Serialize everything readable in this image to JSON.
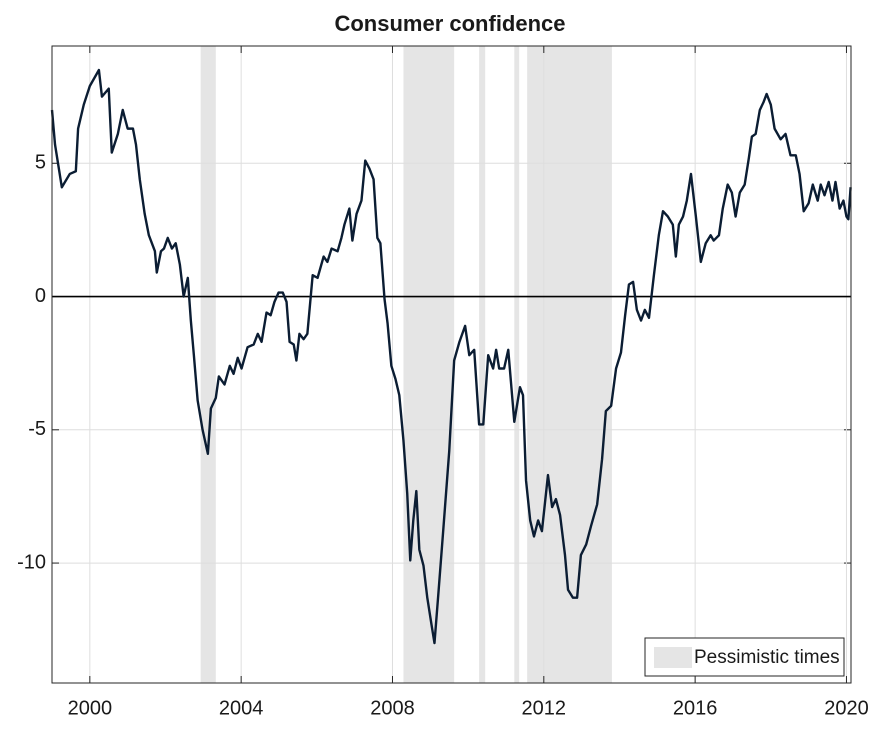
{
  "chart_data": {
    "type": "line",
    "title": "Consumer confidence",
    "x": [
      1999.0,
      1999.08,
      1999.26,
      1999.47,
      1999.63,
      1999.69,
      1999.84,
      2000.0,
      2000.24,
      2000.32,
      2000.5,
      2000.58,
      2000.74,
      2000.87,
      2001.0,
      2001.14,
      2001.22,
      2001.32,
      2001.45,
      2001.56,
      2001.72,
      2001.77,
      2001.88,
      2001.96,
      2002.06,
      2002.17,
      2002.27,
      2002.38,
      2002.48,
      2002.59,
      2002.67,
      2002.75,
      2002.85,
      2002.98,
      2003.12,
      2003.2,
      2003.33,
      2003.41,
      2003.56,
      2003.7,
      2003.8,
      2003.91,
      2004.01,
      2004.17,
      2004.33,
      2004.44,
      2004.54,
      2004.67,
      2004.78,
      2004.88,
      2004.99,
      2005.1,
      2005.2,
      2005.28,
      2005.39,
      2005.46,
      2005.54,
      2005.65,
      2005.75,
      2005.89,
      2006.02,
      2006.18,
      2006.28,
      2006.39,
      2006.55,
      2006.65,
      2006.73,
      2006.86,
      2006.94,
      2007.05,
      2007.18,
      2007.28,
      2007.39,
      2007.5,
      2007.6,
      2007.68,
      2007.79,
      2007.87,
      2007.97,
      2008.08,
      2008.18,
      2008.29,
      2008.39,
      2008.47,
      2008.55,
      2008.63,
      2008.71,
      2008.82,
      2008.92,
      2009.03,
      2009.11,
      2009.21,
      2009.34,
      2009.5,
      2009.63,
      2009.77,
      2009.92,
      2010.03,
      2010.16,
      2010.29,
      2010.4,
      2010.53,
      2010.66,
      2010.74,
      2010.82,
      2010.95,
      2011.06,
      2011.22,
      2011.37,
      2011.45,
      2011.53,
      2011.64,
      2011.74,
      2011.85,
      2011.95,
      2012.11,
      2012.22,
      2012.32,
      2012.43,
      2012.56,
      2012.64,
      2012.77,
      2012.88,
      2012.98,
      2013.12,
      2013.25,
      2013.41,
      2013.54,
      2013.64,
      2013.78,
      2013.91,
      2014.04,
      2014.15,
      2014.25,
      2014.36,
      2014.46,
      2014.57,
      2014.67,
      2014.78,
      2014.91,
      2015.04,
      2015.15,
      2015.28,
      2015.41,
      2015.49,
      2015.57,
      2015.68,
      2015.78,
      2015.89,
      2016.02,
      2016.15,
      2016.28,
      2016.41,
      2016.49,
      2016.63,
      2016.73,
      2016.86,
      2016.97,
      2017.07,
      2017.18,
      2017.31,
      2017.42,
      2017.5,
      2017.6,
      2017.71,
      2017.81,
      2017.89,
      2018.0,
      2018.1,
      2018.26,
      2018.39,
      2018.52,
      2018.66,
      2018.76,
      2018.87,
      2019.0,
      2019.11,
      2019.24,
      2019.32,
      2019.42,
      2019.53,
      2019.63,
      2019.71,
      2019.82,
      2019.92,
      2020.0,
      2020.05,
      2020.11
    ],
    "series": [
      {
        "color": "#0b1d33",
        "values": [
          7.0,
          5.7,
          4.1,
          4.6,
          4.7,
          6.3,
          7.2,
          7.9,
          8.5,
          7.5,
          7.8,
          5.4,
          6.1,
          7.0,
          6.3,
          6.3,
          5.7,
          4.4,
          3.1,
          2.3,
          1.7,
          0.9,
          1.7,
          1.8,
          2.2,
          1.8,
          2.0,
          1.2,
          0.0,
          0.7,
          -0.9,
          -2.2,
          -3.9,
          -5.0,
          -5.9,
          -4.2,
          -3.8,
          -3.0,
          -3.3,
          -2.6,
          -2.9,
          -2.3,
          -2.7,
          -1.9,
          -1.8,
          -1.4,
          -1.7,
          -0.6,
          -0.7,
          -0.2,
          0.15,
          0.15,
          -0.2,
          -1.7,
          -1.8,
          -2.4,
          -1.4,
          -1.6,
          -1.4,
          0.8,
          0.7,
          1.5,
          1.3,
          1.8,
          1.7,
          2.2,
          2.7,
          3.3,
          2.1,
          3.1,
          3.6,
          5.1,
          4.8,
          4.4,
          2.2,
          2.0,
          -0.1,
          -1.0,
          -2.6,
          -3.1,
          -3.7,
          -5.4,
          -7.4,
          -9.9,
          -8.4,
          -7.3,
          -9.5,
          -10.1,
          -11.3,
          -12.3,
          -13.0,
          -11.2,
          -8.8,
          -5.8,
          -2.4,
          -1.7,
          -1.1,
          -2.2,
          -2.0,
          -4.8,
          -4.8,
          -2.2,
          -2.7,
          -2.0,
          -2.7,
          -2.7,
          -2.0,
          -4.7,
          -3.4,
          -3.7,
          -6.9,
          -8.4,
          -9.0,
          -8.4,
          -8.8,
          -6.7,
          -7.9,
          -7.6,
          -8.2,
          -9.7,
          -11.0,
          -11.3,
          -11.3,
          -9.7,
          -9.3,
          -8.6,
          -7.8,
          -6.1,
          -4.3,
          -4.1,
          -2.7,
          -2.1,
          -0.7,
          0.45,
          0.55,
          -0.5,
          -0.9,
          -0.5,
          -0.8,
          0.8,
          2.3,
          3.2,
          3.0,
          2.7,
          1.5,
          2.7,
          3.0,
          3.6,
          4.6,
          3.0,
          1.3,
          2.0,
          2.3,
          2.1,
          2.3,
          3.3,
          4.2,
          3.9,
          3.0,
          3.9,
          4.2,
          5.2,
          6.0,
          6.1,
          7.0,
          7.3,
          7.6,
          7.2,
          6.3,
          5.9,
          6.1,
          5.3,
          5.3,
          4.6,
          3.2,
          3.5,
          4.2,
          3.6,
          4.2,
          3.8,
          4.3,
          3.6,
          4.3,
          3.3,
          3.6,
          3.0,
          2.9,
          4.1
        ]
      }
    ],
    "shaded_regions": {
      "name": "Pessimistic times",
      "color": "#e5e5e5",
      "ranges": [
        [
          2002.93,
          2003.33
        ],
        [
          2008.29,
          2009.63
        ],
        [
          2010.29,
          2010.45
        ],
        [
          2011.22,
          2011.35
        ],
        [
          2011.56,
          2013.8
        ]
      ]
    },
    "xlim": [
      1999.0,
      2020.12
    ],
    "xticks": [
      2000,
      2004,
      2008,
      2012,
      2016,
      2020
    ],
    "ylim": [
      -14.5,
      9.4
    ],
    "yticks": [
      -10,
      -5,
      0,
      5
    ],
    "grid": true,
    "zero_line": true,
    "legend": "lower right"
  }
}
